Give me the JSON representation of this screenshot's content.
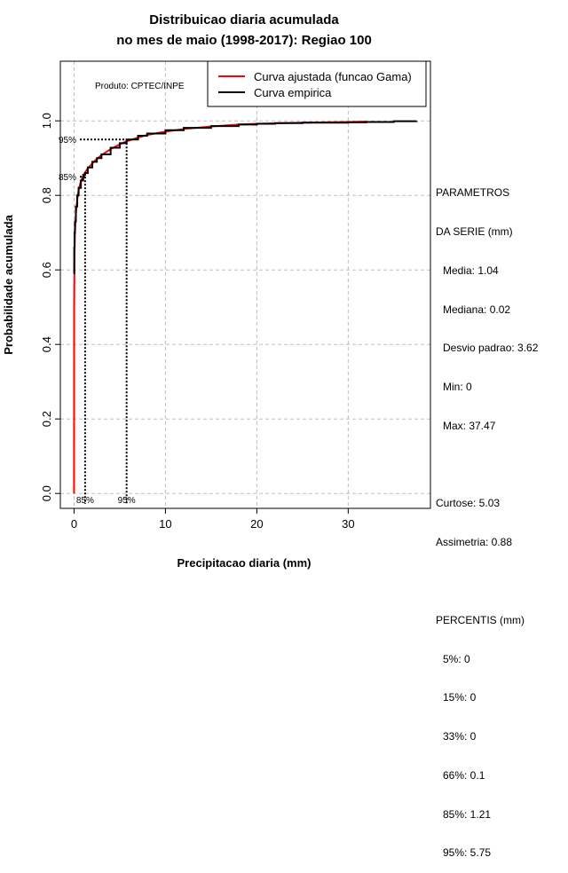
{
  "chart_data": {
    "type": "line",
    "title": "Distribuicao diaria acumulada",
    "subtitle": "no mes de maio (1998-2017): Regiao 100",
    "xlabel": "Precipitacao diaria (mm)",
    "ylabel": "Probabilidade acumulada",
    "xlim": [
      -1.5,
      39
    ],
    "ylim": [
      -0.04,
      1.16
    ],
    "x_ticks": [
      0,
      10,
      20,
      30
    ],
    "y_ticks": [
      0.0,
      0.2,
      0.4,
      0.6,
      0.8,
      1.0
    ],
    "x_tick_labels": [
      "0",
      "10",
      "20",
      "30"
    ],
    "y_tick_labels": [
      "0.0",
      "0.2",
      "0.4",
      "0.6",
      "0.8",
      "1.0"
    ],
    "grid": true,
    "legend_position": "top-right",
    "product_label": "Produto: CPTEC/INPE",
    "series": [
      {
        "name": "Curva ajustada (funcao Gama)",
        "color": "#ff0000",
        "x": [
          0,
          0.01,
          0.05,
          0.1,
          0.2,
          0.35,
          0.5,
          0.75,
          1.0,
          1.21,
          1.5,
          2,
          2.5,
          3,
          4,
          5,
          5.75,
          7,
          8,
          10,
          12,
          15,
          18,
          20,
          25,
          30,
          32
        ],
        "y": [
          0.0,
          0.5,
          0.64,
          0.7,
          0.75,
          0.79,
          0.815,
          0.838,
          0.852,
          0.862,
          0.872,
          0.886,
          0.898,
          0.908,
          0.924,
          0.937,
          0.945,
          0.955,
          0.962,
          0.971,
          0.978,
          0.985,
          0.99,
          0.992,
          0.995,
          0.997,
          0.998
        ]
      },
      {
        "name": "Curva empirica",
        "color": "#000000",
        "x": [
          0,
          0.02,
          0.05,
          0.1,
          0.2,
          0.35,
          0.5,
          0.75,
          1.0,
          1.21,
          1.5,
          2,
          2.5,
          3,
          4,
          5,
          5.75,
          7,
          8,
          10,
          12,
          15,
          18,
          20,
          22,
          25,
          30,
          32,
          35,
          37.47
        ],
        "y": [
          0.59,
          0.66,
          0.7,
          0.73,
          0.77,
          0.8,
          0.82,
          0.84,
          0.855,
          0.86,
          0.875,
          0.89,
          0.9,
          0.91,
          0.928,
          0.94,
          0.95,
          0.96,
          0.966,
          0.975,
          0.981,
          0.986,
          0.99,
          0.992,
          0.994,
          0.995,
          0.996,
          0.997,
          0.999,
          1.0
        ]
      }
    ],
    "percentile_markers": [
      {
        "label": "85%",
        "x": 1.21,
        "y": 0.85
      },
      {
        "label": "95%",
        "x": 5.75,
        "y": 0.95
      }
    ]
  },
  "side_panel": {
    "params_title_1": "PARAMETROS",
    "params_title_2": "DA SERIE (mm)",
    "media": "Media: 1.04",
    "mediana": "Mediana: 0.02",
    "desvio": "Desvio padrao: 3.62",
    "min": "Min: 0",
    "max": "Max: 37.47",
    "curtose": "Curtose: 5.03",
    "assimetria": "Assimetria: 0.88",
    "percentis_title": "PERCENTIS (mm)",
    "p5": "5%: 0",
    "p15": "15%: 0",
    "p33": "33%: 0",
    "p66": "66%: 0.1",
    "p85": "85%: 1.21",
    "p95": "95%: 5.75"
  }
}
